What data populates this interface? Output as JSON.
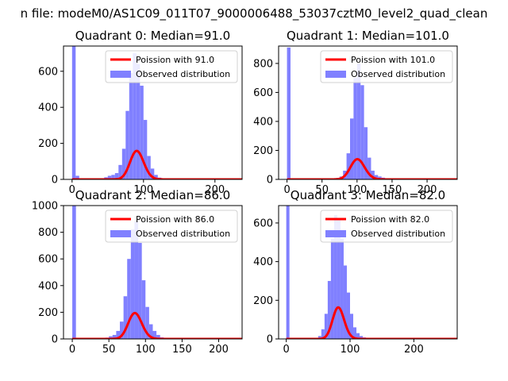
{
  "figure": {
    "suptitle": "n file: modeM0/AS1C09_011T07_9000006488_53037cztM0_level2_quad_clean"
  },
  "colors": {
    "poisson_line": "#ff0000",
    "observed_bars": "#8080ff",
    "axis": "#000000",
    "background": "#ffffff"
  },
  "chart_data": [
    {
      "type": "bar",
      "title": "Quadrant 0: Median=91.0",
      "xlabel": "",
      "ylabel": "",
      "xlim": [
        -12,
        238
      ],
      "ylim": [
        0,
        740
      ],
      "xticks": [
        0,
        100,
        200
      ],
      "yticks": [
        0,
        200,
        400,
        600
      ],
      "legend": {
        "placement": "top-right",
        "entries": [
          "Poission with 91.0",
          "Observed distribution"
        ]
      },
      "series": [
        {
          "name": "Observed distribution",
          "kind": "histogram",
          "bin_width": 5,
          "bins": [
            [
              0,
              740
            ],
            [
              5,
              20
            ],
            [
              40,
              5
            ],
            [
              45,
              12
            ],
            [
              50,
              20
            ],
            [
              55,
              25
            ],
            [
              60,
              35
            ],
            [
              65,
              80
            ],
            [
              70,
              170
            ],
            [
              75,
              380
            ],
            [
              80,
              590
            ],
            [
              85,
              700
            ],
            [
              90,
              640
            ],
            [
              95,
              520
            ],
            [
              100,
              330
            ],
            [
              105,
              130
            ],
            [
              110,
              60
            ],
            [
              115,
              25
            ],
            [
              120,
              10
            ],
            [
              125,
              5
            ],
            [
              130,
              3
            ],
            [
              135,
              2
            ],
            [
              140,
              1
            ],
            [
              145,
              1
            ],
            [
              150,
              1
            ],
            [
              155,
              1
            ],
            [
              160,
              1
            ],
            [
              165,
              1
            ],
            [
              170,
              1
            ],
            [
              175,
              1
            ],
            [
              180,
              1
            ],
            [
              185,
              1
            ],
            [
              190,
              1
            ],
            [
              195,
              1
            ],
            [
              200,
              1
            ],
            [
              205,
              1
            ],
            [
              210,
              1
            ],
            [
              215,
              1
            ],
            [
              220,
              1
            ],
            [
              225,
              1
            ]
          ]
        },
        {
          "name": "Poission with 91.0",
          "kind": "poisson",
          "mean": 91.0,
          "scale": 5
        }
      ]
    },
    {
      "type": "bar",
      "title": "Quadrant 1: Median=101.0",
      "xlabel": "",
      "ylabel": "",
      "xlim": [
        -12,
        243
      ],
      "ylim": [
        0,
        920
      ],
      "xticks": [
        0,
        50,
        100,
        150,
        200
      ],
      "yticks": [
        0,
        200,
        400,
        600,
        800
      ],
      "legend": {
        "placement": "top-right",
        "entries": [
          "Poission with 101.0",
          "Observed distribution"
        ]
      },
      "series": [
        {
          "name": "Observed distribution",
          "kind": "histogram",
          "bin_width": 5,
          "bins": [
            [
              0,
              910
            ],
            [
              5,
              8
            ],
            [
              70,
              10
            ],
            [
              75,
              20
            ],
            [
              80,
              60
            ],
            [
              85,
              180
            ],
            [
              90,
              420
            ],
            [
              95,
              700
            ],
            [
              100,
              800
            ],
            [
              105,
              650
            ],
            [
              110,
              360
            ],
            [
              115,
              150
            ],
            [
              120,
              60
            ],
            [
              125,
              30
            ],
            [
              130,
              20
            ],
            [
              135,
              12
            ],
            [
              140,
              8
            ],
            [
              145,
              5
            ],
            [
              150,
              4
            ],
            [
              155,
              3
            ],
            [
              160,
              2
            ],
            [
              165,
              2
            ],
            [
              170,
              1
            ],
            [
              175,
              1
            ],
            [
              180,
              1
            ],
            [
              185,
              1
            ],
            [
              190,
              1
            ],
            [
              195,
              1
            ],
            [
              200,
              1
            ],
            [
              205,
              1
            ],
            [
              210,
              1
            ],
            [
              215,
              1
            ]
          ]
        },
        {
          "name": "Poission with 101.0",
          "kind": "poisson",
          "mean": 101.0,
          "scale": 5
        }
      ]
    },
    {
      "type": "bar",
      "title": "Quadrant 2: Median=86.0",
      "xlabel": "",
      "ylabel": "",
      "xlim": [
        -12,
        232
      ],
      "ylim": [
        0,
        1000
      ],
      "xticks": [
        0,
        50,
        100,
        150,
        200
      ],
      "yticks": [
        0,
        200,
        400,
        600,
        800,
        1000
      ],
      "legend": {
        "placement": "top-right",
        "entries": [
          "Poission with 86.0",
          "Observed distribution"
        ]
      },
      "series": [
        {
          "name": "Observed distribution",
          "kind": "histogram",
          "bin_width": 5,
          "bins": [
            [
              0,
              1000
            ],
            [
              5,
              5
            ],
            [
              40,
              5
            ],
            [
              45,
              10
            ],
            [
              50,
              20
            ],
            [
              55,
              30
            ],
            [
              60,
              60
            ],
            [
              65,
              130
            ],
            [
              70,
              320
            ],
            [
              75,
              600
            ],
            [
              80,
              820
            ],
            [
              85,
              880
            ],
            [
              90,
              720
            ],
            [
              95,
              440
            ],
            [
              100,
              240
            ],
            [
              105,
              110
            ],
            [
              110,
              60
            ],
            [
              115,
              30
            ],
            [
              120,
              12
            ],
            [
              125,
              5
            ],
            [
              130,
              3
            ],
            [
              135,
              2
            ],
            [
              140,
              1
            ],
            [
              145,
              1
            ],
            [
              150,
              1
            ],
            [
              155,
              1
            ],
            [
              160,
              1
            ],
            [
              165,
              1
            ],
            [
              170,
              1
            ],
            [
              175,
              1
            ],
            [
              180,
              1
            ],
            [
              185,
              1
            ],
            [
              190,
              1
            ],
            [
              195,
              1
            ],
            [
              200,
              1
            ],
            [
              205,
              1
            ],
            [
              210,
              1
            ],
            [
              215,
              1
            ]
          ]
        },
        {
          "name": "Poission with 86.0",
          "kind": "poisson",
          "mean": 86.0,
          "scale": 5
        }
      ]
    },
    {
      "type": "bar",
      "title": "Quadrant 3: Median=82.0",
      "xlabel": "",
      "ylabel": "",
      "xlim": [
        -12,
        268
      ],
      "ylim": [
        0,
        690
      ],
      "xticks": [
        0,
        100,
        200
      ],
      "yticks": [
        0,
        200,
        400,
        600
      ],
      "legend": {
        "placement": "top-right",
        "entries": [
          "Poission with 82.0",
          "Observed distribution"
        ]
      },
      "series": [
        {
          "name": "Observed distribution",
          "kind": "histogram",
          "bin_width": 5,
          "bins": [
            [
              0,
              690
            ],
            [
              5,
              5
            ],
            [
              45,
              5
            ],
            [
              50,
              15
            ],
            [
              55,
              50
            ],
            [
              60,
              130
            ],
            [
              65,
              300
            ],
            [
              70,
              520
            ],
            [
              75,
              640
            ],
            [
              80,
              620
            ],
            [
              85,
              520
            ],
            [
              90,
              380
            ],
            [
              95,
              240
            ],
            [
              100,
              130
            ],
            [
              105,
              60
            ],
            [
              110,
              30
            ],
            [
              115,
              15
            ],
            [
              120,
              8
            ],
            [
              125,
              5
            ],
            [
              130,
              3
            ],
            [
              135,
              2
            ],
            [
              140,
              1
            ],
            [
              145,
              1
            ],
            [
              150,
              1
            ],
            [
              155,
              1
            ],
            [
              160,
              1
            ],
            [
              165,
              1
            ],
            [
              170,
              1
            ],
            [
              175,
              1
            ],
            [
              180,
              1
            ],
            [
              185,
              1
            ],
            [
              190,
              1
            ],
            [
              195,
              1
            ],
            [
              200,
              1
            ],
            [
              205,
              1
            ],
            [
              210,
              1
            ],
            [
              215,
              1
            ],
            [
              220,
              1
            ],
            [
              225,
              1
            ],
            [
              230,
              1
            ],
            [
              235,
              1
            ],
            [
              240,
              1
            ],
            [
              245,
              1
            ],
            [
              250,
              1
            ]
          ]
        },
        {
          "name": "Poission with 82.0",
          "kind": "poisson",
          "mean": 82.0,
          "scale": 5
        }
      ]
    }
  ]
}
